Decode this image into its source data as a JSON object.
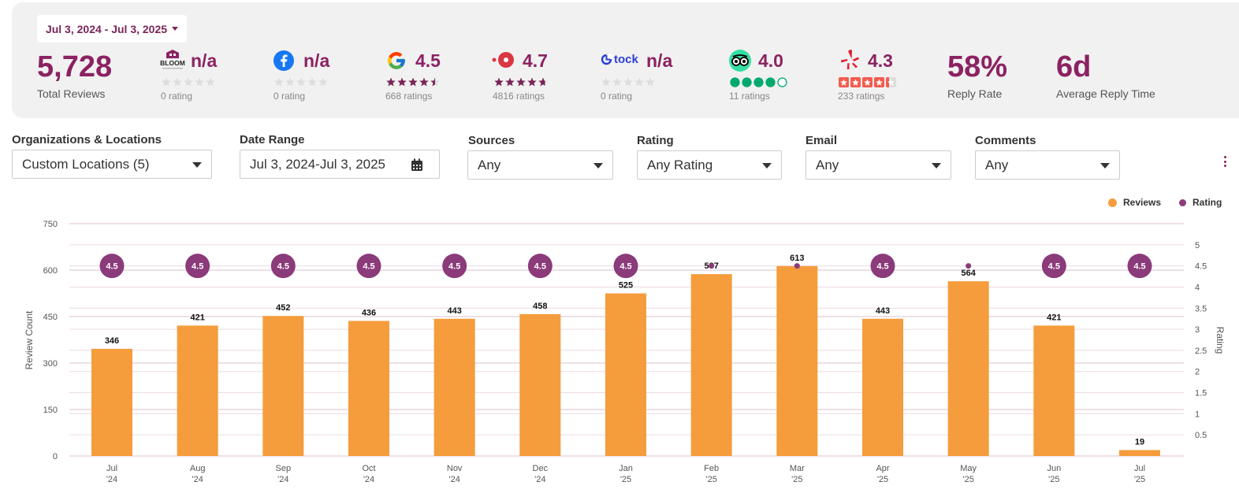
{
  "header": {
    "date_range_label": "Jul 3, 2024 - Jul 3, 2025",
    "total_reviews": {
      "value": "5,728",
      "label": "Total Reviews"
    },
    "sources": [
      {
        "name": "bloom-logo",
        "value": "n/a",
        "sub": "0 rating",
        "stars": 0,
        "star_style": "gray"
      },
      {
        "name": "facebook-icon",
        "value": "n/a",
        "sub": "0 rating",
        "stars": 0,
        "star_style": "gray"
      },
      {
        "name": "google-icon",
        "value": "4.5",
        "sub": "668 ratings",
        "stars": 4.5,
        "star_style": "purple"
      },
      {
        "name": "opentable-icon",
        "value": "4.7",
        "sub": "4816 ratings",
        "stars": 4.7,
        "star_style": "purple"
      },
      {
        "name": "tock-logo",
        "logo_text": "tock",
        "value": "n/a",
        "sub": "0 rating",
        "stars": 0,
        "star_style": "gray"
      },
      {
        "name": "tripadvisor-icon",
        "value": "4.0",
        "sub": "11 ratings",
        "stars": 4,
        "star_style": "tripadvisor"
      },
      {
        "name": "yelp-icon",
        "value": "4.3",
        "sub": "233 ratings",
        "stars": 4.3,
        "star_style": "yelp"
      }
    ],
    "reply_rate": {
      "value": "58%",
      "label": "Reply Rate"
    },
    "reply_time": {
      "value": "6d",
      "label": "Average Reply Time"
    }
  },
  "filters": {
    "orgs": {
      "label": "Organizations & Locations",
      "value": "Custom Locations (5)"
    },
    "date_range": {
      "label": "Date Range",
      "value": "Jul 3, 2024-Jul 3, 2025"
    },
    "sources": {
      "label": "Sources",
      "value": "Any"
    },
    "rating": {
      "label": "Rating",
      "value": "Any Rating"
    },
    "email": {
      "label": "Email",
      "value": "Any"
    },
    "comments": {
      "label": "Comments",
      "value": "Any"
    }
  },
  "legend": {
    "reviews": "Reviews",
    "rating": "Rating"
  },
  "colors": {
    "brand": "#8b2262",
    "bar": "#f59c3c",
    "rating_dot": "#8b3a7a"
  },
  "chart_data": {
    "type": "bar",
    "categories": [
      "Jul '24",
      "Aug '24",
      "Sep '24",
      "Oct '24",
      "Nov '24",
      "Dec '24",
      "Jan '25",
      "Feb '25",
      "Mar '25",
      "Apr '25",
      "May '25",
      "Jun '25",
      "Jul '25"
    ],
    "category_lines": [
      [
        "Jul",
        "'24"
      ],
      [
        "Aug",
        "'24"
      ],
      [
        "Sep",
        "'24"
      ],
      [
        "Oct",
        "'24"
      ],
      [
        "Nov",
        "'24"
      ],
      [
        "Dec",
        "'24"
      ],
      [
        "Jan",
        "'25"
      ],
      [
        "Feb",
        "'25"
      ],
      [
        "Mar",
        "'25"
      ],
      [
        "Apr",
        "'25"
      ],
      [
        "May",
        "'25"
      ],
      [
        "Jun",
        "'25"
      ],
      [
        "Jul",
        "'25"
      ]
    ],
    "series": [
      {
        "name": "Reviews",
        "type": "bar",
        "axis": "left",
        "values": [
          346,
          421,
          452,
          436,
          443,
          458,
          525,
          587,
          613,
          443,
          564,
          421,
          19
        ]
      },
      {
        "name": "Rating",
        "type": "point",
        "axis": "right",
        "values": [
          4.5,
          4.5,
          4.5,
          4.5,
          4.5,
          4.5,
          4.5,
          4.5,
          4.5,
          4.5,
          4.5,
          4.5,
          4.5
        ],
        "labeled": [
          true,
          true,
          true,
          true,
          true,
          true,
          true,
          false,
          false,
          true,
          false,
          true,
          true
        ]
      }
    ],
    "ylabel": "Review Count",
    "y2label": "Rating",
    "ylim": [
      0,
      750
    ],
    "yticks": [
      0,
      150,
      300,
      450,
      600,
      750
    ],
    "y2lim": [
      0,
      5.5
    ],
    "y2ticks": [
      "0.5",
      "1",
      "1.5",
      "2",
      "2.5",
      "3",
      "3.5",
      "4",
      "4.5",
      "5"
    ],
    "grid": true,
    "legend_position": "top-right"
  }
}
